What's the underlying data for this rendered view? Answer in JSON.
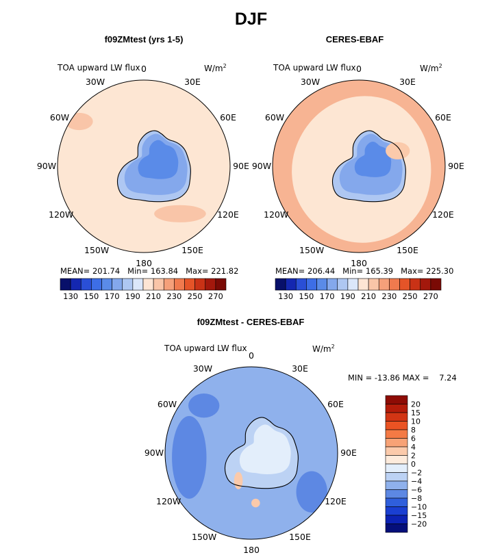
{
  "page_title": "DJF",
  "chart_data": [
    {
      "type": "heatmap",
      "projection": "south-polar-stereographic",
      "title": "f09ZMtest (yrs 1-5)",
      "left_label": "TOA upward LW flux",
      "units_label": "W/m",
      "units_power": "2",
      "stats": {
        "mean_label": "MEAN=",
        "mean": "201.74",
        "min_label": "Min=",
        "min": "163.84",
        "max_label": "Max=",
        "max": "221.82"
      },
      "colorbar": {
        "levels": [
          130,
          140,
          150,
          160,
          170,
          180,
          190,
          200,
          210,
          220,
          230,
          240,
          250,
          260,
          270
        ],
        "tick_labels": [
          "130",
          "150",
          "170",
          "190",
          "210",
          "230",
          "250",
          "270"
        ],
        "colors": [
          "#08106a",
          "#1427b0",
          "#2a4fd6",
          "#3d6ee6",
          "#5a8be8",
          "#84a8ec",
          "#aec7f2",
          "#dbe7fa",
          "#fde5d4",
          "#f9c5a8",
          "#f5a07a",
          "#f07a4e",
          "#e55428",
          "#c93216",
          "#a3180c",
          "#7a0a05"
        ]
      },
      "lon_labels": [
        "0",
        "30E",
        "60E",
        "90E",
        "120E",
        "150E",
        "180",
        "150W",
        "120W",
        "90W",
        "60W",
        "30W"
      ]
    },
    {
      "type": "heatmap",
      "projection": "south-polar-stereographic",
      "title": "CERES-EBAF",
      "left_label": "TOA upward LW flux",
      "units_label": "W/m",
      "units_power": "2",
      "stats": {
        "mean_label": "MEAN=",
        "mean": "206.44",
        "min_label": "Min=",
        "min": "165.39",
        "max_label": "Max=",
        "max": "225.30"
      },
      "colorbar": {
        "levels": [
          130,
          140,
          150,
          160,
          170,
          180,
          190,
          200,
          210,
          220,
          230,
          240,
          250,
          260,
          270
        ],
        "tick_labels": [
          "130",
          "150",
          "170",
          "190",
          "210",
          "230",
          "250",
          "270"
        ],
        "colors": [
          "#08106a",
          "#1427b0",
          "#2a4fd6",
          "#3d6ee6",
          "#5a8be8",
          "#84a8ec",
          "#aec7f2",
          "#dbe7fa",
          "#fde5d4",
          "#f9c5a8",
          "#f5a07a",
          "#f07a4e",
          "#e55428",
          "#c93216",
          "#a3180c",
          "#7a0a05"
        ]
      },
      "lon_labels": [
        "0",
        "30E",
        "60E",
        "90E",
        "120E",
        "150E",
        "180",
        "150W",
        "120W",
        "90W",
        "60W",
        "30W"
      ]
    },
    {
      "type": "heatmap",
      "projection": "south-polar-stereographic",
      "title": "f09ZMtest - CERES-EBAF",
      "left_label": "TOA upward LW flux",
      "units_label": "W/m",
      "units_power": "2",
      "stats": {
        "min_label": "MIN =",
        "min": "-13.86",
        "max_label": "MAX =",
        "max": "7.24"
      },
      "colorbar": {
        "orientation": "vertical",
        "levels": [
          "20",
          "15",
          "10",
          "8",
          "6",
          "4",
          "2",
          "0",
          "−2",
          "−4",
          "−6",
          "−8",
          "−10",
          "−15",
          "−20"
        ],
        "colors": [
          "#8e0c05",
          "#b41c0a",
          "#d23514",
          "#ea5323",
          "#f47a45",
          "#f7a276",
          "#fbcaab",
          "#fdebdc",
          "#e3eefb",
          "#bcd2f4",
          "#8fb1ec",
          "#5d88e3",
          "#2f5fdc",
          "#1a3fd2",
          "#0c22b4",
          "#050f7a"
        ]
      },
      "lon_labels": [
        "0",
        "30E",
        "60E",
        "90E",
        "120E",
        "150E",
        "180",
        "150W",
        "120W",
        "90W",
        "60W",
        "30W"
      ]
    }
  ]
}
